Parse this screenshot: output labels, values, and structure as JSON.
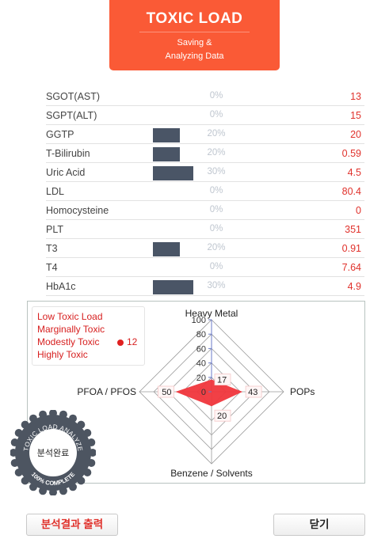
{
  "header": {
    "title": "TOXIC LOAD",
    "subtitle_line1": "Saving &",
    "subtitle_line2": "Analyzing Data"
  },
  "rows": [
    {
      "label": "SGOT(AST)",
      "percent": "0%",
      "value": "13",
      "bar_fraction": 0
    },
    {
      "label": "SGPT(ALT)",
      "percent": "0%",
      "value": "15",
      "bar_fraction": 0
    },
    {
      "label": "GGTP",
      "percent": "20%",
      "value": "20",
      "bar_fraction": 0.2
    },
    {
      "label": "T-Bilirubin",
      "percent": "20%",
      "value": "0.59",
      "bar_fraction": 0.2
    },
    {
      "label": "Uric Acid",
      "percent": "30%",
      "value": "4.5",
      "bar_fraction": 0.3
    },
    {
      "label": "LDL",
      "percent": "0%",
      "value": "80.4",
      "bar_fraction": 0
    },
    {
      "label": "Homocysteine",
      "percent": "0%",
      "value": "0",
      "bar_fraction": 0
    },
    {
      "label": "PLT",
      "percent": "0%",
      "value": "351",
      "bar_fraction": 0
    },
    {
      "label": "T3",
      "percent": "20%",
      "value": "0.91",
      "bar_fraction": 0.2
    },
    {
      "label": "T4",
      "percent": "0%",
      "value": "7.64",
      "bar_fraction": 0
    },
    {
      "label": "HbA1c",
      "percent": "30%",
      "value": "4.9",
      "bar_fraction": 0.3
    }
  ],
  "legend": {
    "items": [
      "Low Toxic Load",
      "Marginally Toxic",
      "Modestly Toxic",
      "Highly Toxic"
    ],
    "score": "12",
    "color": "#d72020"
  },
  "chart_data": {
    "type": "radar",
    "axes": [
      "Heavy Metal",
      "POPs",
      "Benzene / Solvents",
      "PFOA / PFOS"
    ],
    "values": [
      17,
      43,
      20,
      50
    ],
    "ticks": [
      "0",
      "20",
      "40",
      "60",
      "80",
      "100"
    ],
    "range": [
      0,
      100
    ],
    "fill_color": "#f0363c"
  },
  "badge": {
    "top_text": "TOXIC LOAD ANALYZE",
    "center_text": "분석완료",
    "bottom_text": "100% COMPLETE"
  },
  "buttons": {
    "print": "분석결과 출력",
    "close": "닫기"
  },
  "colors": {
    "header": "#fa5a36",
    "bar": "#4a5566",
    "value": "#e0312b"
  }
}
